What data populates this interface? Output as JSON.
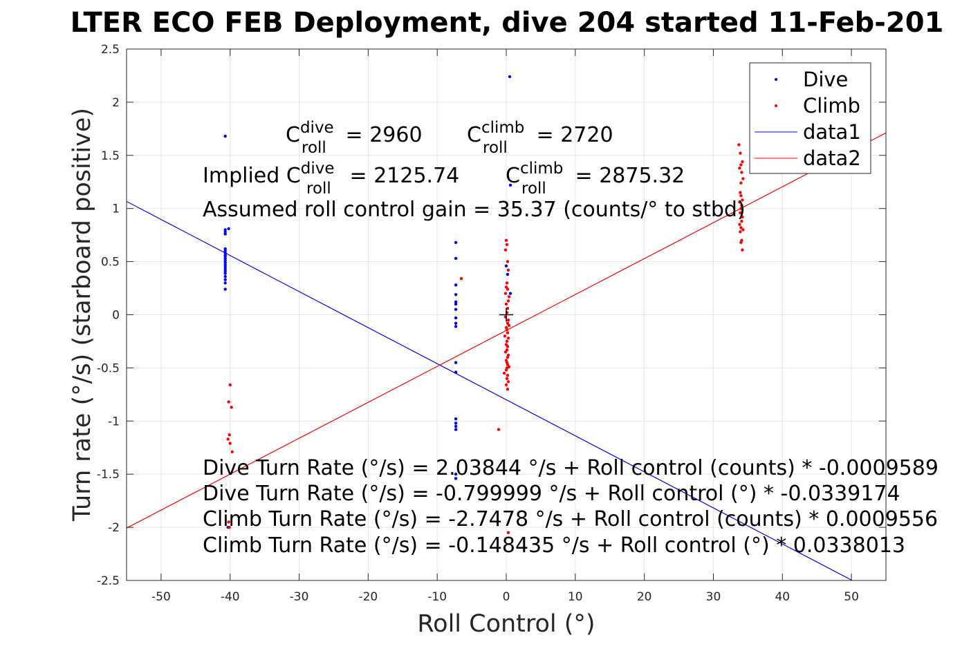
{
  "chart_data": {
    "type": "scatter",
    "title": "LTER ECO FEB Deployment, dive 204 started 11-Feb-201",
    "xlabel": "Roll Control (°)",
    "ylabel": "Turn rate (°/s) (starboard positive)",
    "xlim": [
      -55,
      55
    ],
    "ylim": [
      -2.5,
      2.5
    ],
    "xticks": [
      "-50",
      "-40",
      "-30",
      "-20",
      "-10",
      "0",
      "10",
      "20",
      "30",
      "40",
      "50"
    ],
    "yticks": [
      "2.5",
      "2",
      "1.5",
      "1",
      "0.5",
      "0",
      "-0.5",
      "-1",
      "-1.5",
      "-2",
      "-2.5"
    ],
    "grid": true,
    "legend_position": "top-right",
    "legend": [
      "Dive",
      "Climb",
      "data1",
      "data2"
    ],
    "colors": {
      "dive": "#0000ff",
      "climb": "#ff0000",
      "marker": "#000000"
    },
    "series": [
      {
        "name": "Dive",
        "style": "points",
        "color": "#0000ff",
        "x": [
          -40.7,
          -40.7,
          -40.7,
          -40.7,
          -40.7,
          -40.7,
          -40.7,
          -40.7,
          -40.7,
          -40.7,
          -40.7,
          -40.7,
          -40.7,
          -40.7,
          -40.7,
          -40.7,
          -40.7,
          -40.7,
          -40.7,
          -40.7,
          -40.7,
          -40.2,
          -40.3,
          -7.3,
          -7.3,
          -7.3,
          -7.3,
          -7.3,
          -7.3,
          -7.3,
          -7.3,
          -7.3,
          -7.3,
          -7.3,
          -7.3,
          -7.3,
          -7.3,
          -7.3,
          -7.3,
          -7.3,
          -7.3,
          0.0,
          0.2,
          0.5,
          0.6,
          0.6
        ],
        "y": [
          1.68,
          0.8,
          0.78,
          0.76,
          0.62,
          0.6,
          0.58,
          0.56,
          0.55,
          0.53,
          0.51,
          0.49,
          0.47,
          0.45,
          0.43,
          0.41,
          0.39,
          0.36,
          0.33,
          0.3,
          0.24,
          0.81,
          -2.0,
          0.68,
          0.53,
          0.28,
          0.19,
          0.12,
          0.1,
          0.05,
          -0.03,
          -0.08,
          -0.11,
          -0.45,
          -0.54,
          -0.98,
          -1.02,
          -1.05,
          -1.08,
          -1.5,
          -1.54,
          0.46,
          0.38,
          2.24,
          1.22,
          0.2
        ]
      },
      {
        "name": "Climb",
        "style": "points",
        "color": "#ff0000",
        "x": [
          33.7,
          33.9,
          34.2,
          34.0,
          33.8,
          34.1,
          34.3,
          33.9,
          34.0,
          34.2,
          33.8,
          34.1,
          34.0,
          33.9,
          34.2,
          34.1,
          33.8,
          34.0,
          34.3,
          33.9,
          34.1,
          34.0,
          34.2,
          34.0,
          -40.0,
          -40.2,
          -39.8,
          -40.1,
          -40.3,
          -40.0,
          -39.7,
          -40.2,
          -40.1,
          -6.5,
          -1.1,
          0.3,
          0.0,
          0.1,
          -0.1,
          0.2,
          0.3,
          0.1,
          0.0,
          0.2,
          -0.1,
          0.4,
          0.3,
          0.0,
          0.2,
          0.1,
          -0.1,
          0.3,
          0.2,
          0.4,
          0.0,
          0.1,
          0.2,
          -0.2,
          0.3,
          0.1,
          0.0,
          0.2,
          0.1,
          -0.1,
          0.3,
          0.2,
          0.0,
          0.1,
          0.2,
          0.4,
          0.1,
          0.0,
          -0.3,
          0.2,
          0.1,
          0.3,
          0.0,
          0.2
        ],
        "y": [
          1.6,
          1.52,
          1.44,
          1.41,
          1.38,
          1.34,
          1.28,
          1.15,
          1.12,
          1.08,
          1.06,
          1.03,
          1.0,
          0.96,
          0.92,
          0.88,
          0.85,
          0.82,
          0.8,
          0.78,
          0.7,
          0.68,
          0.61,
          1.24,
          -0.66,
          -0.82,
          -0.87,
          -1.13,
          -1.17,
          -1.21,
          -1.29,
          -1.95,
          -2.0,
          0.34,
          -1.08,
          -2.05,
          0.7,
          0.66,
          0.61,
          0.5,
          0.42,
          0.3,
          0.26,
          0.24,
          0.2,
          0.17,
          0.13,
          0.1,
          0.06,
          0.02,
          -0.02,
          -0.05,
          -0.08,
          -0.1,
          -0.12,
          -0.14,
          -0.17,
          -0.2,
          -0.22,
          -0.25,
          -0.28,
          -0.3,
          -0.33,
          -0.35,
          -0.38,
          -0.4,
          -0.43,
          -0.45,
          -0.47,
          -0.49,
          -0.5,
          -0.52,
          -0.55,
          -0.57,
          -0.6,
          -0.63,
          -0.66,
          -0.7
        ]
      },
      {
        "name": "data1",
        "style": "line",
        "color": "#0000ff",
        "x": [
          -55,
          55
        ],
        "y": [
          1.066,
          -2.666
        ]
      },
      {
        "name": "data2",
        "style": "line",
        "color": "#ff0000",
        "x": [
          -55,
          55
        ],
        "y": [
          -2.007,
          1.711
        ]
      },
      {
        "name": "",
        "style": "plus-marker",
        "color": "#000000",
        "x": [
          0
        ],
        "y": [
          0
        ]
      }
    ],
    "annotations": {
      "c_dive": {
        "base": "C",
        "sup": "dive",
        "sub": "roll",
        "rest": " = 2960"
      },
      "c_climb": {
        "base": "C",
        "sup": "climb",
        "sub": "roll",
        "rest": " = 2720"
      },
      "implied_dive": {
        "prefix": "Implied C",
        "sup": "dive",
        "sub": "roll",
        "rest": " = 2125.74"
      },
      "implied_climb": {
        "base": "C",
        "sup": "climb",
        "sub": "roll",
        "rest": " = 2875.32"
      },
      "gain": "Assumed roll control gain = 35.37 (counts/° to stbd)",
      "eq1": "Dive Turn Rate (°/s) = 2.03844 °/s + Roll control (counts) * -0.0009589",
      "eq2": "Dive Turn Rate (°/s) = -0.799999 °/s + Roll control (°) * -0.0339174",
      "eq3": "Climb Turn Rate (°/s) = -2.7478 °/s + Roll control (counts) * 0.0009556",
      "eq4": "Climb Turn Rate (°/s) = -0.148435 °/s + Roll control (°) * 0.0338013"
    }
  }
}
